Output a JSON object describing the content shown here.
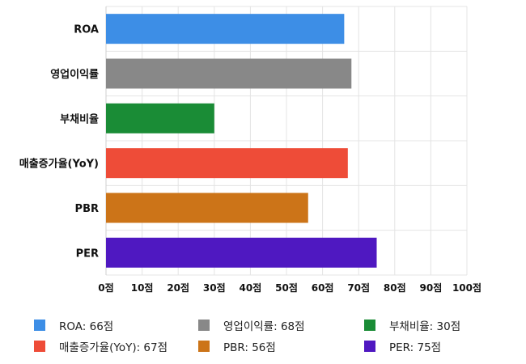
{
  "chart_data": {
    "type": "bar",
    "orientation": "horizontal",
    "categories": [
      "ROA",
      "영업이익률",
      "부채비율",
      "매출증가율(YoY)",
      "PBR",
      "PER"
    ],
    "values": [
      66,
      68,
      30,
      67,
      56,
      75
    ],
    "colors": [
      "#3d8ee6",
      "#888888",
      "#1a8c36",
      "#ee4c38",
      "#cc7418",
      "#4f18c1"
    ],
    "xlim": [
      0,
      100
    ],
    "ticks": [
      0,
      10,
      20,
      30,
      40,
      50,
      60,
      70,
      80,
      90,
      100
    ],
    "tick_labels": [
      "0점",
      "10점",
      "20점",
      "30점",
      "40점",
      "50점",
      "60점",
      "70점",
      "80점",
      "90점",
      "100점"
    ],
    "grid": true,
    "legend_position": "bottom",
    "legend": [
      "ROA: 66점",
      "영업이익률: 68점",
      "부채비율: 30점",
      "매출증가율(YoY): 67점",
      "PBR: 56점",
      "PER: 75점"
    ]
  }
}
